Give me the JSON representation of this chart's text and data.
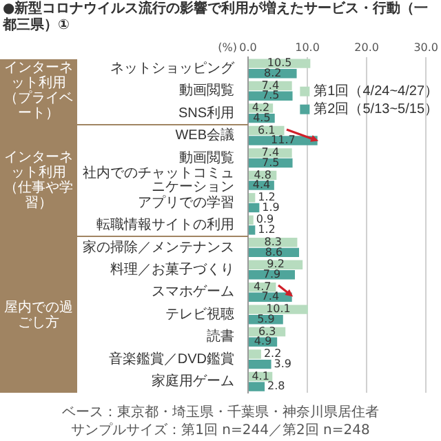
{
  "chart_data": {
    "type": "bar",
    "orientation": "horizontal",
    "title": "●新型コロナウイルス流行の影響で利用が増えたサービス・行動（一都三県）①",
    "xlabel": "(%)",
    "categories": [
      "ネットショッピング",
      "動画閲覧",
      "SNS利用",
      "WEB会議",
      "動画閲覧",
      "社内でのチャットコミュニケーション",
      "アプリでの学習",
      "転職情報サイトの利用",
      "家の掃除／メンテナンス",
      "料理／お菓子づくり",
      "スマホゲーム",
      "テレビ視聴",
      "読書",
      "音楽鑑賞／DVD鑑賞",
      "家庭用ゲーム"
    ],
    "series": [
      {
        "name": "第1回（4/24~4/27）",
        "color": "#b7dcbf",
        "values": [
          10.5,
          7.4,
          4.2,
          6.1,
          7.4,
          4.8,
          1.2,
          0.9,
          8.3,
          9.2,
          4.7,
          10.1,
          6.3,
          2.2,
          4.1
        ]
      },
      {
        "name": "第2回（5/13~5/15）",
        "color": "#4fa59b",
        "values": [
          8.2,
          7.5,
          4.5,
          11.7,
          7.5,
          4.4,
          1.9,
          1.2,
          8.6,
          7.9,
          7.4,
          5.9,
          4.9,
          3.9,
          2.8
        ]
      }
    ],
    "xlim": [
      0,
      30
    ],
    "xticks": [
      {
        "value": 0,
        "label": "0.0"
      },
      {
        "value": 10,
        "label": "10.0"
      },
      {
        "value": 20,
        "label": "20.0"
      },
      {
        "value": 30,
        "label": "30.0"
      }
    ],
    "grid": "x",
    "legend": "top right",
    "data_labels": true,
    "annotations": [
      "インターネット利用（プライベート）",
      "インターネット利用（仕事や学習）",
      "屋内での過ごし方",
      "ベース：東京都・埼玉県・千葉県・神奈川県居住者",
      "サンプルサイズ：第1回 n=244／第2回 n=248"
    ]
  }
}
